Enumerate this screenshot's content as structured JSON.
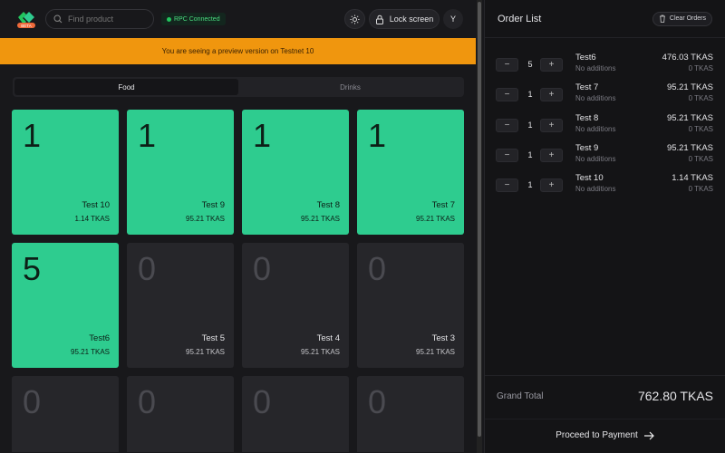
{
  "header": {
    "logo_text": "BETA",
    "search_placeholder": "Find product",
    "rpc_status": "RPC Connected",
    "lock_label": "Lock screen",
    "avatar": "Y"
  },
  "banner": "You are seeing a preview version on Testnet 10",
  "tabs": [
    {
      "label": "Food",
      "active": true
    },
    {
      "label": "Drinks",
      "active": false
    }
  ],
  "products": [
    {
      "qty": "1",
      "name": "Test 10",
      "price": "1.14 TKAS",
      "selected": true
    },
    {
      "qty": "1",
      "name": "Test 9",
      "price": "95.21 TKAS",
      "selected": true
    },
    {
      "qty": "1",
      "name": "Test 8",
      "price": "95.21 TKAS",
      "selected": true
    },
    {
      "qty": "1",
      "name": "Test 7",
      "price": "95.21 TKAS",
      "selected": true
    },
    {
      "qty": "5",
      "name": "Test6",
      "price": "95.21 TKAS",
      "selected": true
    },
    {
      "qty": "0",
      "name": "Test 5",
      "price": "95.21 TKAS",
      "selected": false
    },
    {
      "qty": "0",
      "name": "Test 4",
      "price": "95.21 TKAS",
      "selected": false
    },
    {
      "qty": "0",
      "name": "Test 3",
      "price": "95.21 TKAS",
      "selected": false
    },
    {
      "qty": "0",
      "name": "",
      "price": "",
      "selected": false
    },
    {
      "qty": "0",
      "name": "",
      "price": "",
      "selected": false
    },
    {
      "qty": "0",
      "name": "",
      "price": "",
      "selected": false
    },
    {
      "qty": "0",
      "name": "",
      "price": "",
      "selected": false
    }
  ],
  "order": {
    "title": "Order List",
    "clear_label": "Clear Orders",
    "items": [
      {
        "qty": "5",
        "name": "Test6",
        "additions": "No additions",
        "price": "476.03 TKAS",
        "additions_price": "0 TKAS"
      },
      {
        "qty": "1",
        "name": "Test 7",
        "additions": "No additions",
        "price": "95.21 TKAS",
        "additions_price": "0 TKAS"
      },
      {
        "qty": "1",
        "name": "Test 8",
        "additions": "No additions",
        "price": "95.21 TKAS",
        "additions_price": "0 TKAS"
      },
      {
        "qty": "1",
        "name": "Test 9",
        "additions": "No additions",
        "price": "95.21 TKAS",
        "additions_price": "0 TKAS"
      },
      {
        "qty": "1",
        "name": "Test 10",
        "additions": "No additions",
        "price": "1.14 TKAS",
        "additions_price": "0 TKAS"
      }
    ],
    "total_label": "Grand Total",
    "total_value": "762.80 TKAS",
    "proceed_label": "Proceed to Payment"
  },
  "colors": {
    "accent": "#2ecc8f",
    "banner": "#f0960e",
    "rpc": "#22c55e"
  }
}
